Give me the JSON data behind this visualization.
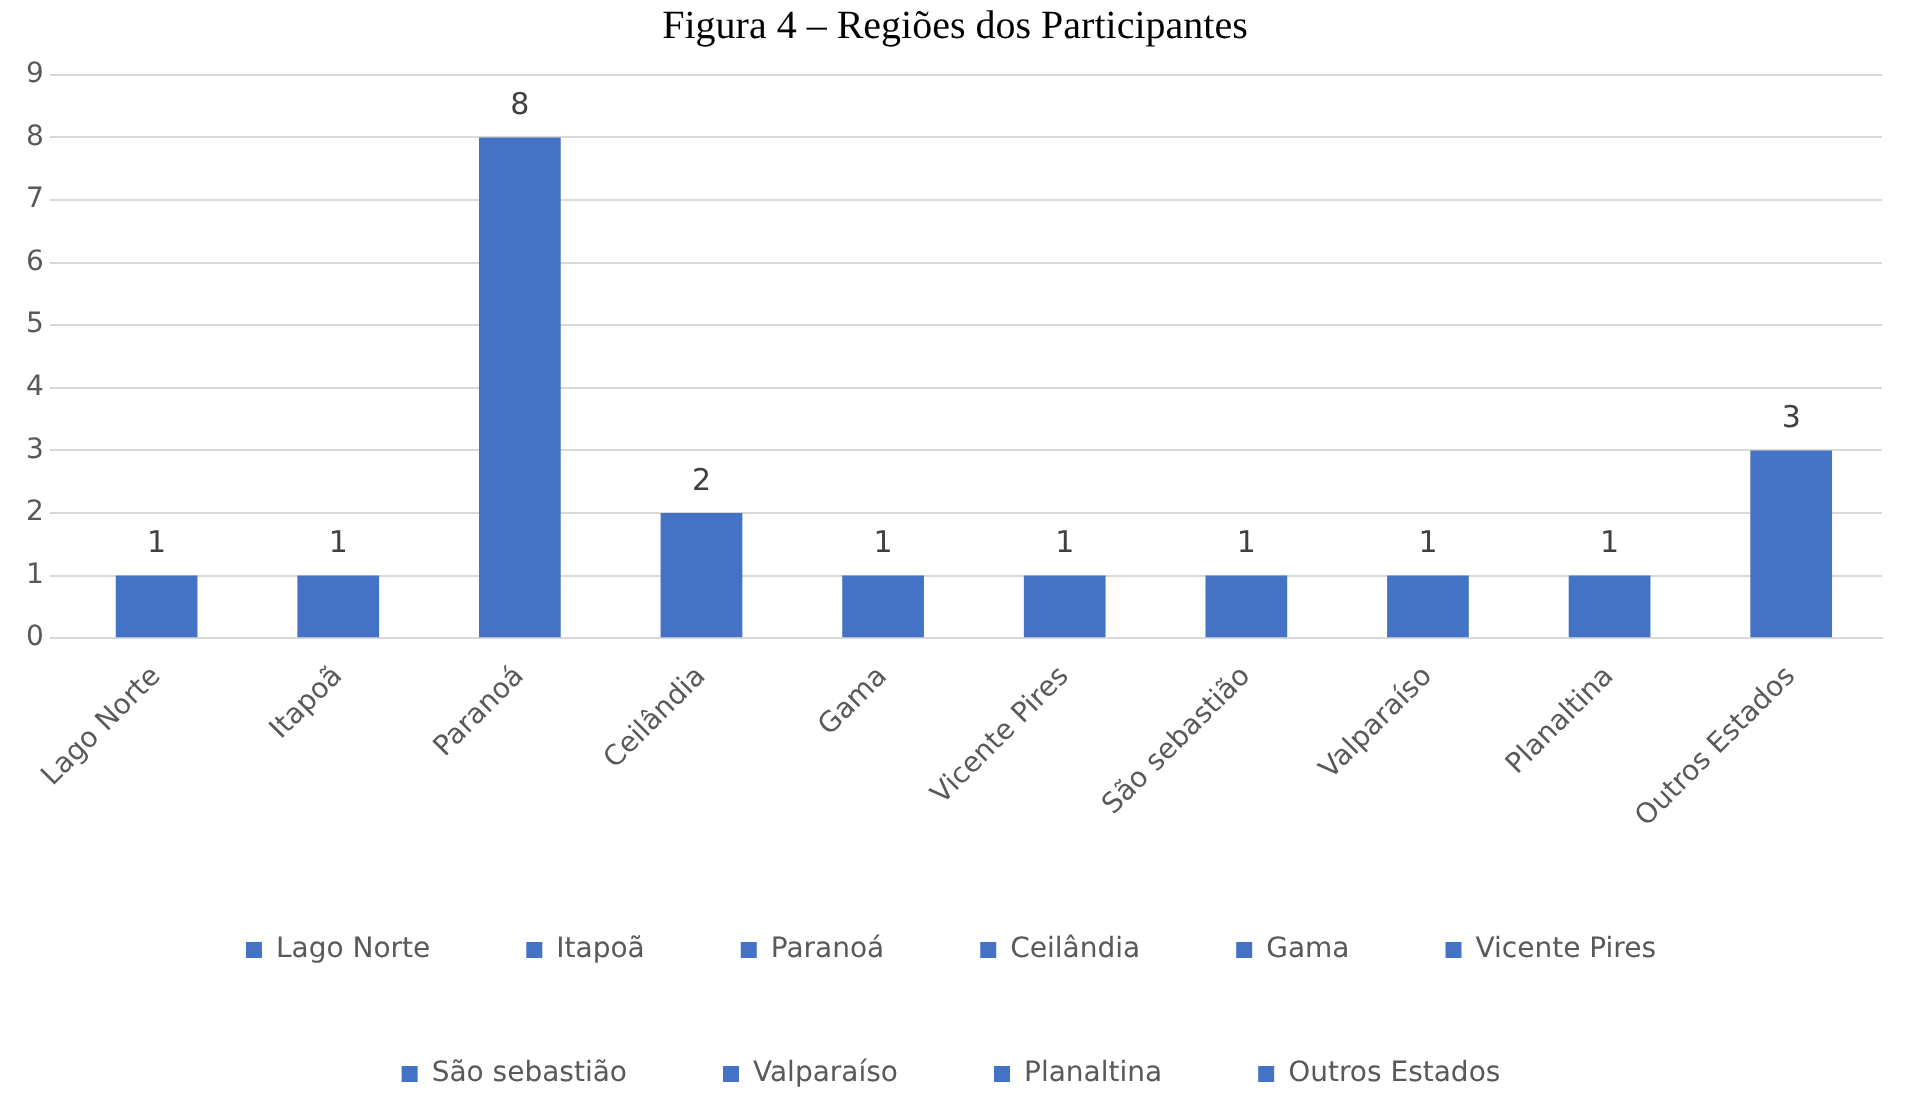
{
  "chart_data": {
    "type": "bar",
    "title": "Figura 4 – Regiões dos Participantes",
    "categories": [
      "Lago Norte",
      "Itapoã",
      "Paranoá",
      "Ceilândia",
      "Gama",
      "Vicente Pires",
      "São sebastião",
      "Valparaíso",
      "Planaltina",
      "Outros Estados"
    ],
    "series": [
      {
        "name": "Lago Norte",
        "color": "#4472c4",
        "values": [
          1,
          null,
          null,
          null,
          null,
          null,
          null,
          null,
          null,
          null
        ]
      },
      {
        "name": "Itapoã",
        "color": "#4472c4",
        "values": [
          null,
          1,
          null,
          null,
          null,
          null,
          null,
          null,
          null,
          null
        ]
      },
      {
        "name": "Paranoá",
        "color": "#4472c4",
        "values": [
          null,
          null,
          8,
          null,
          null,
          null,
          null,
          null,
          null,
          null
        ]
      },
      {
        "name": "Ceilândia",
        "color": "#4472c4",
        "values": [
          null,
          null,
          null,
          2,
          null,
          null,
          null,
          null,
          null,
          null
        ]
      },
      {
        "name": "Gama",
        "color": "#4472c4",
        "values": [
          null,
          null,
          null,
          null,
          1,
          null,
          null,
          null,
          null,
          null
        ]
      },
      {
        "name": "Vicente Pires",
        "color": "#4472c4",
        "values": [
          null,
          null,
          null,
          null,
          null,
          1,
          null,
          null,
          null,
          null
        ]
      },
      {
        "name": "São sebastião",
        "color": "#4472c4",
        "values": [
          null,
          null,
          null,
          null,
          null,
          null,
          1,
          null,
          null,
          null
        ]
      },
      {
        "name": "Valparaíso",
        "color": "#4472c4",
        "values": [
          null,
          null,
          null,
          null,
          null,
          null,
          null,
          1,
          null,
          null
        ]
      },
      {
        "name": "Planaltina",
        "color": "#4472c4",
        "values": [
          null,
          null,
          null,
          null,
          null,
          null,
          null,
          null,
          1,
          null
        ]
      },
      {
        "name": "Outros Estados",
        "color": "#4472c4",
        "values": [
          null,
          null,
          null,
          null,
          null,
          null,
          null,
          null,
          null,
          3
        ]
      }
    ],
    "stacked": true,
    "ylim": [
      0,
      9
    ],
    "yticks": [
      0,
      1,
      2,
      3,
      4,
      5,
      6,
      7,
      8,
      9
    ],
    "grid": "y",
    "legend": "bottom",
    "data_labels": true
  }
}
